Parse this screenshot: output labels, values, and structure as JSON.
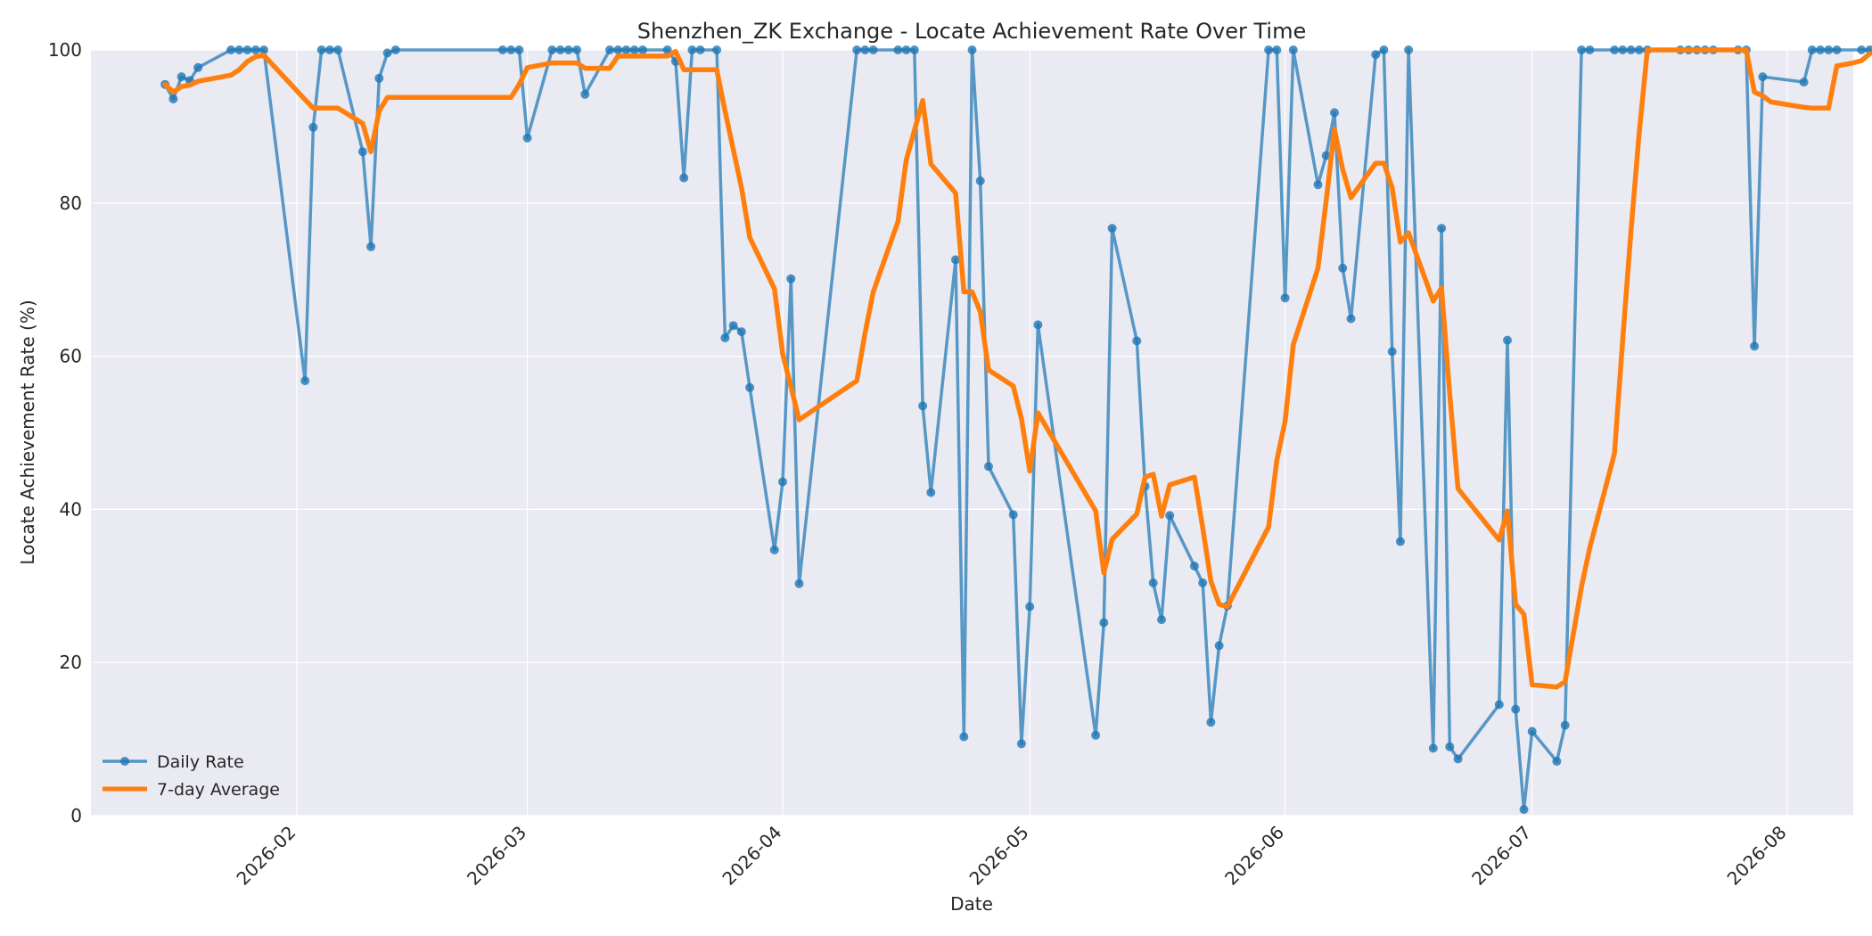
{
  "chart_data": {
    "type": "line",
    "title": "Shenzhen_ZK Exchange - Locate Achievement Rate Over Time",
    "xlabel": "Date",
    "ylabel": "Locate Achievement Rate (%)",
    "ylim": [
      0,
      100
    ],
    "xlim": [
      "2026-01-07",
      "2026-08-09"
    ],
    "x_ticks": [
      "2026-02-01",
      "2026-03-01",
      "2026-04-01",
      "2026-05-01",
      "2026-06-01",
      "2026-07-01",
      "2026-08-01"
    ],
    "x_tick_labels": [
      "2026-02",
      "2026-03",
      "2026-04",
      "2026-05",
      "2026-06",
      "2026-07",
      "2026-08"
    ],
    "y_ticks": [
      0,
      20,
      40,
      60,
      80,
      100
    ],
    "y_tick_labels": [
      "0",
      "20",
      "40",
      "60",
      "80",
      "100"
    ],
    "grid": true,
    "legend_position": "lower-left",
    "series": [
      {
        "name": "Daily Rate",
        "color": "#1f77b4",
        "marker": "circle",
        "points": [
          [
            "2026-01-16",
            95.5
          ],
          [
            "2026-01-17",
            93.6
          ],
          [
            "2026-01-18",
            96.5
          ],
          [
            "2026-01-19",
            96.0
          ],
          [
            "2026-01-20",
            97.7
          ],
          [
            "2026-01-24",
            100
          ],
          [
            "2026-01-25",
            100
          ],
          [
            "2026-01-26",
            100
          ],
          [
            "2026-01-27",
            100
          ],
          [
            "2026-01-28",
            100
          ],
          [
            "2026-02-02",
            56.8
          ],
          [
            "2026-02-03",
            89.9
          ],
          [
            "2026-02-04",
            100
          ],
          [
            "2026-02-05",
            100
          ],
          [
            "2026-02-06",
            100
          ],
          [
            "2026-02-09",
            86.7
          ],
          [
            "2026-02-10",
            74.3
          ],
          [
            "2026-02-11",
            96.3
          ],
          [
            "2026-02-12",
            99.6
          ],
          [
            "2026-02-13",
            100
          ],
          [
            "2026-02-26",
            100
          ],
          [
            "2026-02-27",
            100
          ],
          [
            "2026-02-28",
            100
          ],
          [
            "2026-03-01",
            88.5
          ],
          [
            "2026-03-04",
            100
          ],
          [
            "2026-03-05",
            100
          ],
          [
            "2026-03-06",
            100
          ],
          [
            "2026-03-07",
            100
          ],
          [
            "2026-03-08",
            94.2
          ],
          [
            "2026-03-11",
            100
          ],
          [
            "2026-03-12",
            100
          ],
          [
            "2026-03-13",
            100
          ],
          [
            "2026-03-14",
            100
          ],
          [
            "2026-03-15",
            100
          ],
          [
            "2026-03-18",
            100
          ],
          [
            "2026-03-19",
            98.5
          ],
          [
            "2026-03-20",
            83.3
          ],
          [
            "2026-03-21",
            100
          ],
          [
            "2026-03-22",
            100
          ],
          [
            "2026-03-24",
            100
          ],
          [
            "2026-03-25",
            62.4
          ],
          [
            "2026-03-26",
            64.0
          ],
          [
            "2026-03-27",
            63.2
          ],
          [
            "2026-03-28",
            55.9
          ],
          [
            "2026-03-31",
            34.7
          ],
          [
            "2026-04-01",
            43.6
          ],
          [
            "2026-04-02",
            70.1
          ],
          [
            "2026-04-03",
            30.3
          ],
          [
            "2026-04-10",
            100
          ],
          [
            "2026-04-11",
            100
          ],
          [
            "2026-04-12",
            100
          ],
          [
            "2026-04-15",
            100
          ],
          [
            "2026-04-16",
            100
          ],
          [
            "2026-04-17",
            100
          ],
          [
            "2026-04-18",
            53.5
          ],
          [
            "2026-04-19",
            42.2
          ],
          [
            "2026-04-22",
            72.6
          ],
          [
            "2026-04-23",
            10.3
          ],
          [
            "2026-04-24",
            100
          ],
          [
            "2026-04-25",
            82.9
          ],
          [
            "2026-04-26",
            45.6
          ],
          [
            "2026-04-29",
            39.3
          ],
          [
            "2026-04-30",
            9.4
          ],
          [
            "2026-05-01",
            27.3
          ],
          [
            "2026-05-02",
            64.1
          ],
          [
            "2026-05-09",
            10.5
          ],
          [
            "2026-05-10",
            25.2
          ],
          [
            "2026-05-11",
            76.7
          ],
          [
            "2026-05-14",
            62.0
          ],
          [
            "2026-05-15",
            43.0
          ],
          [
            "2026-05-16",
            30.4
          ],
          [
            "2026-05-17",
            25.6
          ],
          [
            "2026-05-18",
            39.2
          ],
          [
            "2026-05-21",
            32.6
          ],
          [
            "2026-05-22",
            30.4
          ],
          [
            "2026-05-23",
            12.2
          ],
          [
            "2026-05-24",
            22.2
          ],
          [
            "2026-05-25",
            27.4
          ],
          [
            "2026-05-30",
            100
          ],
          [
            "2026-05-31",
            100
          ],
          [
            "2026-06-01",
            67.6
          ],
          [
            "2026-06-02",
            100
          ],
          [
            "2026-06-05",
            82.4
          ],
          [
            "2026-06-06",
            86.2
          ],
          [
            "2026-06-07",
            91.8
          ],
          [
            "2026-06-08",
            71.5
          ],
          [
            "2026-06-09",
            64.9
          ],
          [
            "2026-06-12",
            99.4
          ],
          [
            "2026-06-13",
            100
          ],
          [
            "2026-06-14",
            60.6
          ],
          [
            "2026-06-15",
            35.8
          ],
          [
            "2026-06-16",
            100
          ],
          [
            "2026-06-19",
            8.8
          ],
          [
            "2026-06-20",
            76.7
          ],
          [
            "2026-06-21",
            9.0
          ],
          [
            "2026-06-22",
            7.4
          ],
          [
            "2026-06-27",
            14.5
          ],
          [
            "2026-06-28",
            62.1
          ],
          [
            "2026-06-29",
            13.9
          ],
          [
            "2026-06-30",
            0.8
          ],
          [
            "2026-07-01",
            11.0
          ],
          [
            "2026-07-04",
            7.1
          ],
          [
            "2026-07-05",
            11.8
          ],
          [
            "2026-07-07",
            100
          ],
          [
            "2026-07-08",
            100
          ],
          [
            "2026-07-11",
            100
          ],
          [
            "2026-07-12",
            100
          ],
          [
            "2026-07-13",
            100
          ],
          [
            "2026-07-14",
            100
          ],
          [
            "2026-07-15",
            100
          ],
          [
            "2026-07-19",
            100
          ],
          [
            "2026-07-20",
            100
          ],
          [
            "2026-07-21",
            100
          ],
          [
            "2026-07-22",
            100
          ],
          [
            "2026-07-23",
            100
          ],
          [
            "2026-07-26",
            100
          ],
          [
            "2026-07-27",
            100
          ],
          [
            "2026-07-28",
            61.3
          ],
          [
            "2026-07-29",
            96.5
          ],
          [
            "2026-08-03",
            95.8
          ],
          [
            "2026-08-04",
            100
          ],
          [
            "2026-08-05",
            100
          ],
          [
            "2026-08-06",
            100
          ],
          [
            "2026-08-07",
            100
          ],
          [
            "2026-08-10",
            100
          ],
          [
            "2026-08-11",
            100
          ]
        ]
      },
      {
        "name": "7-day Average",
        "color": "#ff7f0e",
        "marker": "none",
        "points": [
          [
            "2026-01-16",
            95.5
          ],
          [
            "2026-01-17",
            94.5
          ],
          [
            "2026-01-18",
            95.2
          ],
          [
            "2026-01-19",
            95.4
          ],
          [
            "2026-01-20",
            95.9
          ],
          [
            "2026-01-24",
            96.7
          ],
          [
            "2026-01-25",
            97.4
          ],
          [
            "2026-01-26",
            98.5
          ],
          [
            "2026-01-27",
            99.1
          ],
          [
            "2026-01-28",
            99.3
          ],
          [
            "2026-02-02",
            93.5
          ],
          [
            "2026-02-03",
            92.4
          ],
          [
            "2026-02-04",
            92.4
          ],
          [
            "2026-02-05",
            92.4
          ],
          [
            "2026-02-06",
            92.4
          ],
          [
            "2026-02-09",
            90.4
          ],
          [
            "2026-02-10",
            86.7
          ],
          [
            "2026-02-11",
            92.0
          ],
          [
            "2026-02-12",
            93.8
          ],
          [
            "2026-02-13",
            93.8
          ],
          [
            "2026-02-26",
            93.8
          ],
          [
            "2026-02-27",
            93.8
          ],
          [
            "2026-02-28",
            95.5
          ],
          [
            "2026-03-01",
            97.7
          ],
          [
            "2026-03-04",
            98.3
          ],
          [
            "2026-03-05",
            98.3
          ],
          [
            "2026-03-06",
            98.3
          ],
          [
            "2026-03-07",
            98.3
          ],
          [
            "2026-03-08",
            97.6
          ],
          [
            "2026-03-11",
            97.6
          ],
          [
            "2026-03-12",
            99.2
          ],
          [
            "2026-03-13",
            99.2
          ],
          [
            "2026-03-14",
            99.2
          ],
          [
            "2026-03-15",
            99.2
          ],
          [
            "2026-03-18",
            99.2
          ],
          [
            "2026-03-19",
            99.8
          ],
          [
            "2026-03-20",
            97.4
          ],
          [
            "2026-03-21",
            97.4
          ],
          [
            "2026-03-22",
            97.4
          ],
          [
            "2026-03-24",
            97.4
          ],
          [
            "2026-03-25",
            92.0
          ],
          [
            "2026-03-26",
            87.0
          ],
          [
            "2026-03-27",
            82.0
          ],
          [
            "2026-03-28",
            75.5
          ],
          [
            "2026-03-31",
            68.8
          ],
          [
            "2026-04-01",
            60.3
          ],
          [
            "2026-04-02",
            56.0
          ],
          [
            "2026-04-03",
            51.7
          ],
          [
            "2026-04-10",
            56.8
          ],
          [
            "2026-04-11",
            63.0
          ],
          [
            "2026-04-12",
            68.4
          ],
          [
            "2026-04-15",
            77.6
          ],
          [
            "2026-04-16",
            85.6
          ],
          [
            "2026-04-17",
            89.5
          ],
          [
            "2026-04-18",
            93.4
          ],
          [
            "2026-04-19",
            85.1
          ],
          [
            "2026-04-22",
            81.3
          ],
          [
            "2026-04-23",
            68.4
          ],
          [
            "2026-04-24",
            68.4
          ],
          [
            "2026-04-25",
            65.8
          ],
          [
            "2026-04-26",
            58.2
          ],
          [
            "2026-04-29",
            56.1
          ],
          [
            "2026-04-30",
            51.8
          ],
          [
            "2026-05-01",
            45.0
          ],
          [
            "2026-05-02",
            52.6
          ],
          [
            "2026-05-09",
            39.8
          ],
          [
            "2026-05-10",
            31.7
          ],
          [
            "2026-05-11",
            36.1
          ],
          [
            "2026-05-14",
            39.4
          ],
          [
            "2026-05-15",
            44.2
          ],
          [
            "2026-05-16",
            44.6
          ],
          [
            "2026-05-17",
            39.1
          ],
          [
            "2026-05-18",
            43.2
          ],
          [
            "2026-05-21",
            44.2
          ],
          [
            "2026-05-22",
            37.6
          ],
          [
            "2026-05-23",
            30.6
          ],
          [
            "2026-05-24",
            27.6
          ],
          [
            "2026-05-25",
            27.3
          ],
          [
            "2026-05-30",
            37.7
          ],
          [
            "2026-05-31",
            46.4
          ],
          [
            "2026-06-01",
            51.5
          ],
          [
            "2026-06-02",
            61.5
          ],
          [
            "2026-06-05",
            71.5
          ],
          [
            "2026-06-06",
            80.3
          ],
          [
            "2026-06-07",
            89.6
          ],
          [
            "2026-06-08",
            84.4
          ],
          [
            "2026-06-09",
            80.7
          ],
          [
            "2026-06-12",
            85.2
          ],
          [
            "2026-06-13",
            85.2
          ],
          [
            "2026-06-14",
            82.0
          ],
          [
            "2026-06-15",
            74.9
          ],
          [
            "2026-06-16",
            76.1
          ],
          [
            "2026-06-19",
            67.2
          ],
          [
            "2026-06-20",
            68.9
          ],
          [
            "2026-06-21",
            55.0
          ],
          [
            "2026-06-22",
            42.7
          ],
          [
            "2026-06-27",
            36.0
          ],
          [
            "2026-06-28",
            39.8
          ],
          [
            "2026-06-29",
            27.6
          ],
          [
            "2026-06-30",
            26.3
          ],
          [
            "2026-07-01",
            17.1
          ],
          [
            "2026-07-04",
            16.8
          ],
          [
            "2026-07-05",
            17.5
          ],
          [
            "2026-07-07",
            29.9
          ],
          [
            "2026-07-08",
            35.0
          ],
          [
            "2026-07-11",
            47.3
          ],
          [
            "2026-07-12",
            62.1
          ],
          [
            "2026-07-13",
            76.3
          ],
          [
            "2026-07-14",
            89.1
          ],
          [
            "2026-07-15",
            100
          ],
          [
            "2026-07-19",
            100
          ],
          [
            "2026-07-20",
            100
          ],
          [
            "2026-07-21",
            100
          ],
          [
            "2026-07-22",
            100
          ],
          [
            "2026-07-23",
            100
          ],
          [
            "2026-07-26",
            100
          ],
          [
            "2026-07-27",
            100
          ],
          [
            "2026-07-28",
            94.5
          ],
          [
            "2026-07-29",
            94.0
          ],
          [
            "2026-07-30",
            93.2
          ],
          [
            "2026-08-03",
            92.5
          ],
          [
            "2026-08-04",
            92.4
          ],
          [
            "2026-08-06",
            92.4
          ],
          [
            "2026-08-07",
            97.9
          ],
          [
            "2026-08-09",
            98.3
          ],
          [
            "2026-08-10",
            98.6
          ],
          [
            "2026-08-11",
            99.5
          ]
        ]
      }
    ]
  }
}
